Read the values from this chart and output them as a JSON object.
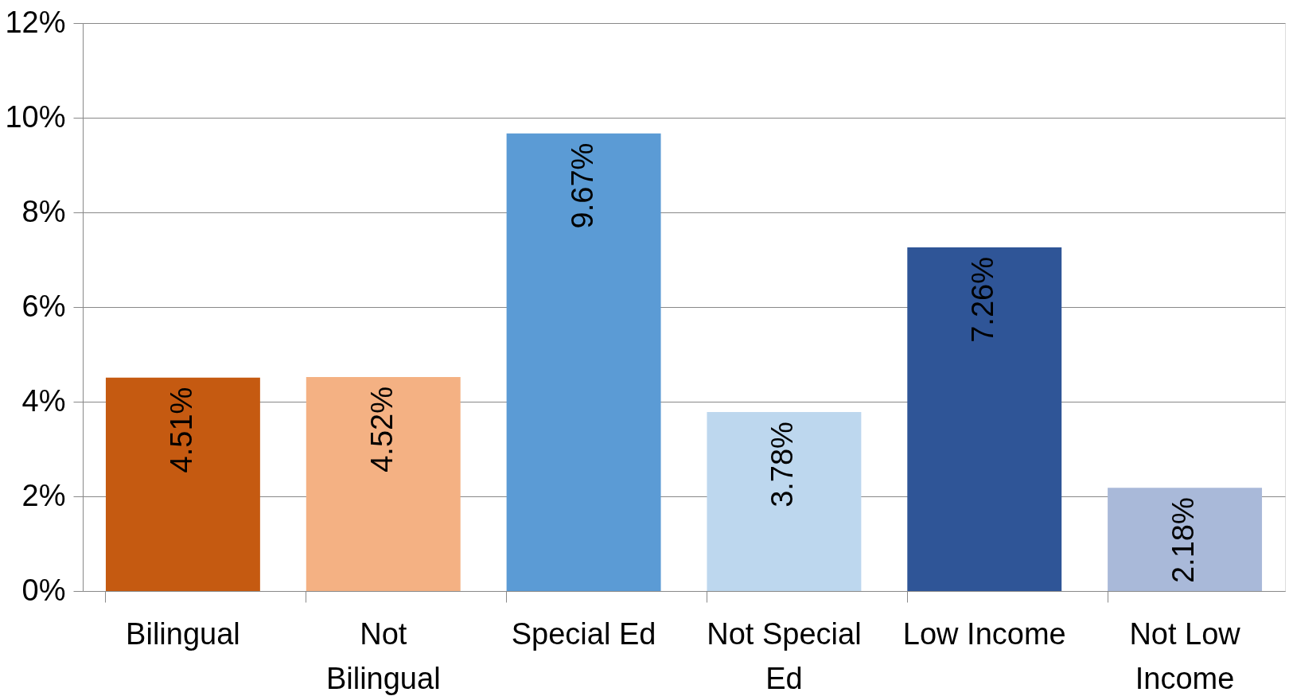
{
  "chart_data": {
    "type": "bar",
    "categories": [
      "Bilingual",
      "Not Bilingual",
      "Special Ed",
      "Not Special Ed",
      "Low Income",
      "Not Low Income"
    ],
    "values": [
      4.51,
      4.52,
      9.67,
      3.78,
      7.26,
      2.18
    ],
    "colors": [
      "#c55a11",
      "#f4b183",
      "#5b9bd5",
      "#bdd7ee",
      "#2f5597",
      "#a9b9d9"
    ],
    "value_labels": [
      "4.51%",
      "4.52%",
      "9.67%",
      "3.78%",
      "7.26%",
      "2.18%"
    ],
    "ylim": [
      0,
      12
    ],
    "yticks": [
      {
        "value": 0,
        "label": "0%"
      },
      {
        "value": 2,
        "label": "2%"
      },
      {
        "value": 4,
        "label": "4%"
      },
      {
        "value": 6,
        "label": "6%"
      },
      {
        "value": 8,
        "label": "8%"
      },
      {
        "value": 10,
        "label": "10%"
      },
      {
        "value": 12,
        "label": "12%"
      }
    ],
    "grid": "y"
  }
}
